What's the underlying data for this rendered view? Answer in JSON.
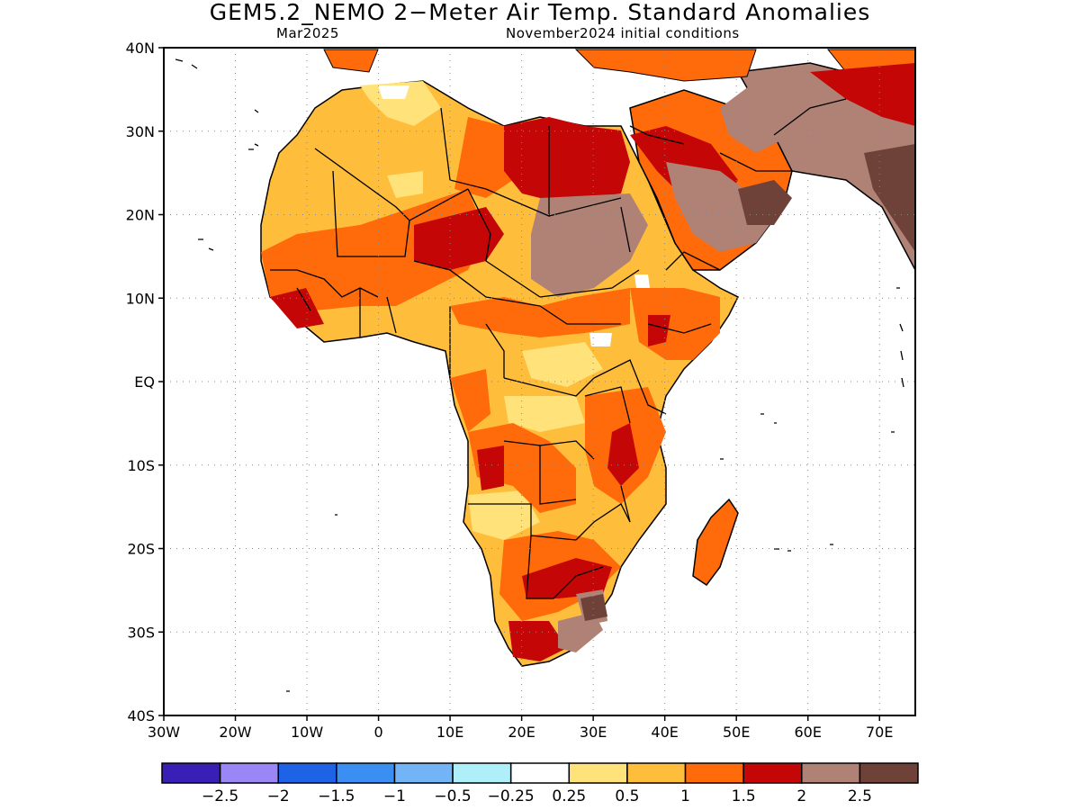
{
  "title": "GEM5.2_NEMO 2−Meter Air Temp. Standard Anomalies",
  "subtitle_left": "Mar2025",
  "subtitle_right": "November2024 initial conditions",
  "lat_labels": [
    "40N",
    "30N",
    "20N",
    "10N",
    "EQ",
    "10S",
    "20S",
    "30S",
    "40S"
  ],
  "lon_labels": [
    "30W",
    "20W",
    "10W",
    "0",
    "10E",
    "20E",
    "30E",
    "40E",
    "50E",
    "60E",
    "70E"
  ],
  "legend": {
    "colors": [
      "#3a1fb7",
      "#9b86f5",
      "#1e62e6",
      "#3b8ef2",
      "#73b4f7",
      "#aeeffa",
      "#ffffff",
      "#ffe27a",
      "#ffbd3c",
      "#ff6a0a",
      "#c40606",
      "#b08276",
      "#6e4238"
    ],
    "labels": [
      "−2.5",
      "−2",
      "−1.5",
      "−1",
      "−0.5",
      "−0.25",
      "0.25",
      "0.5",
      "1",
      "1.5",
      "2",
      "2.5"
    ]
  }
}
